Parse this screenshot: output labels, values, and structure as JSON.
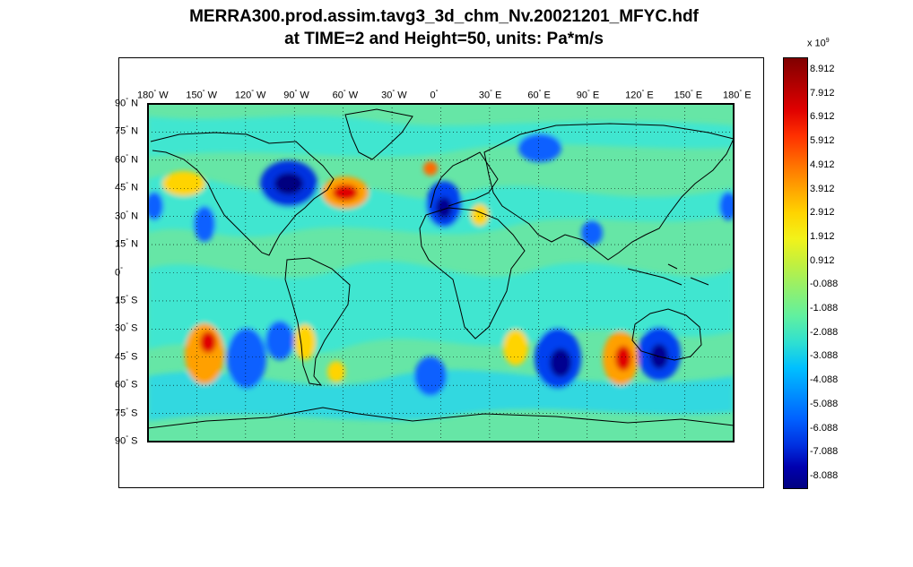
{
  "title": {
    "line1": "MERRA300.prod.assim.tavg3_3d_chm_Nv.20021201_MFYC.hdf",
    "line2": "at TIME=2 and Height=50, units: Pa*m/s"
  },
  "map": {
    "projection": "equirectangular",
    "lon_range": [
      -180,
      180
    ],
    "lat_range": [
      -90,
      90
    ],
    "grid": "dotted",
    "lon_labels": [
      "180",
      "150",
      "120",
      "90",
      "60",
      "30",
      "0",
      "30",
      "60",
      "90",
      "120",
      "150",
      "180"
    ],
    "lon_suffix": [
      "W",
      "W",
      "W",
      "W",
      "W",
      "W",
      "",
      "E",
      "E",
      "E",
      "E",
      "E",
      "E"
    ],
    "lat_labels": [
      "90",
      "75",
      "60",
      "45",
      "30",
      "15",
      "0",
      "15",
      "30",
      "45",
      "60",
      "75",
      "90"
    ],
    "lat_suffix": [
      "N",
      "N",
      "N",
      "N",
      "N",
      "N",
      "",
      "S",
      "S",
      "S",
      "S",
      "S",
      "S"
    ],
    "colors": {
      "background": "#66e6a6",
      "base": "#40e6d0",
      "coast": "#000000"
    }
  },
  "colorbar": {
    "exponent_base": "x 10",
    "exponent_power": "9",
    "ticks": [
      "8.912",
      "7.912",
      "6.912",
      "5.912",
      "4.912",
      "3.912",
      "2.912",
      "1.912",
      "0.912",
      "-0.088",
      "-1.088",
      "-2.088",
      "-3.088",
      "-4.088",
      "-5.088",
      "-6.088",
      "-7.088",
      "-8.088"
    ],
    "colormap": "jet"
  }
}
